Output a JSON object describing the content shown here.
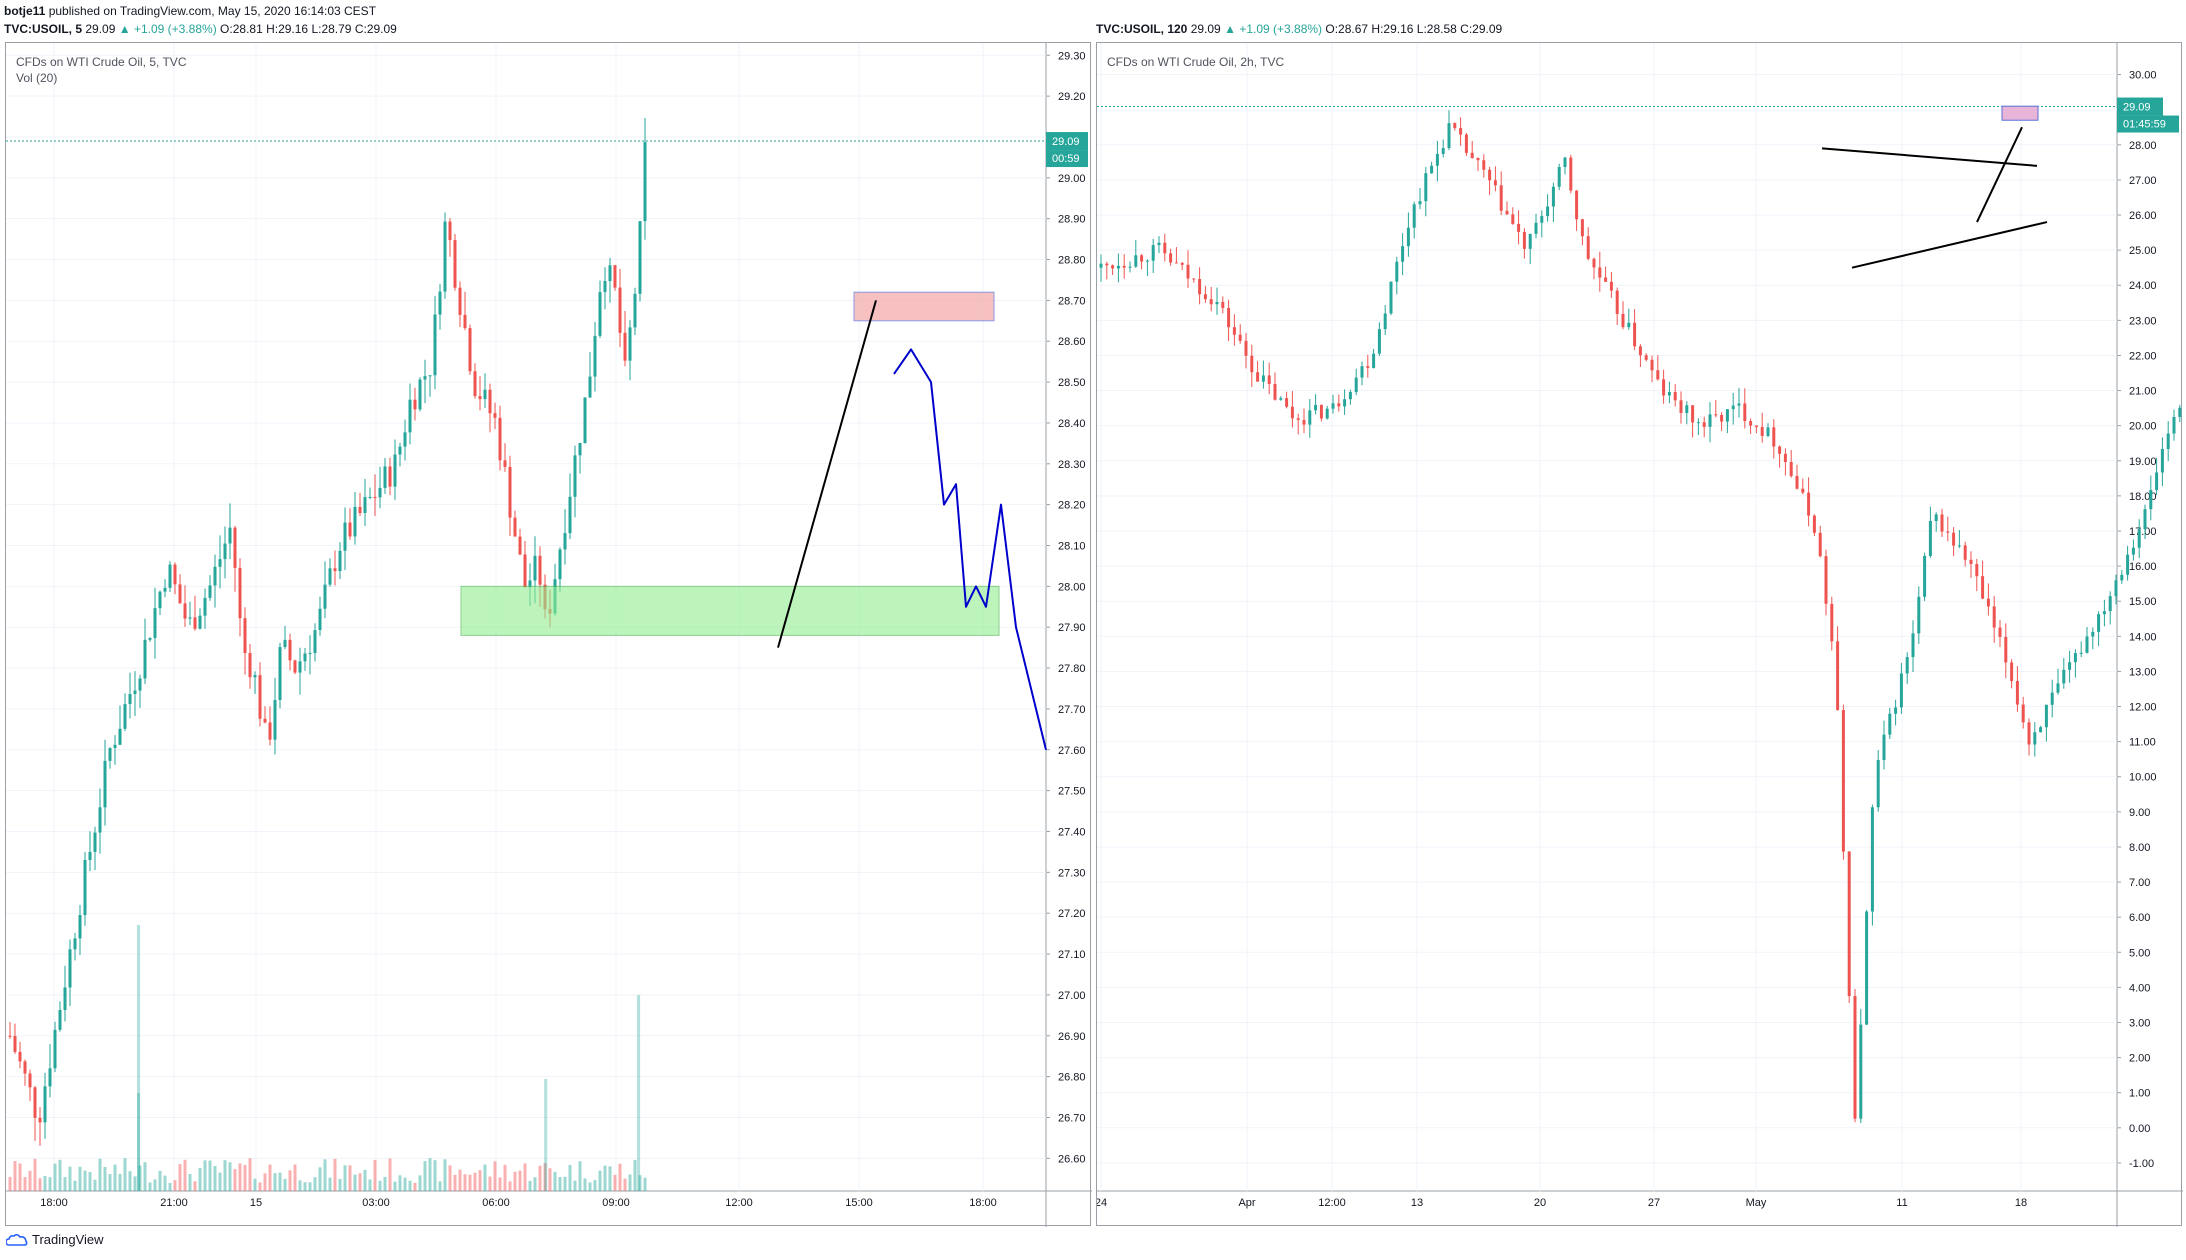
{
  "header": {
    "author": "botje11",
    "published": "published on TradingView.com, May 15, 2020 16:14:03 CEST"
  },
  "left_panel": {
    "symbol_line": {
      "symbol": "TVC:USOIL, 5",
      "last": "29.09",
      "change": "+1.09 (+3.88%)",
      "ohlc": "O:28.81 H:29.16 L:28.79 C:29.09"
    },
    "title": "CFDs on WTI Crude Oil, 5, TVC",
    "indicator": "Vol (20)",
    "price_tag": "29.09",
    "countdown_tag": "00:59"
  },
  "right_panel": {
    "symbol_line": {
      "symbol": "TVC:USOIL, 120",
      "last": "29.09",
      "change": "+1.09 (+3.88%)",
      "ohlc": "O:28.67 H:29.16 L:28.58 C:29.09"
    },
    "title": "CFDs on WTI Crude Oil, 2h, TVC",
    "price_tag": "29.09",
    "countdown_tag": "01:45:59"
  },
  "footer": {
    "brand": "TradingView"
  },
  "colors": {
    "up": "#26a69a",
    "down": "#ef5350",
    "projection": "#0000cc",
    "support_zone": "#90ee90",
    "resistance_zone": "#f4a8a8",
    "price_line": "#26a69a"
  },
  "chart_data": [
    {
      "type": "candlestick",
      "title": "CFDs on WTI Crude Oil, 5, TVC",
      "y_ticks": [
        "29.30",
        "29.20",
        "29.10",
        "29.00",
        "28.90",
        "28.80",
        "28.70",
        "28.60",
        "28.50",
        "28.40",
        "28.30",
        "28.20",
        "28.10",
        "28.00",
        "27.90",
        "27.80",
        "27.70",
        "27.60",
        "27.50",
        "27.40",
        "27.30",
        "27.20",
        "27.10",
        "27.00",
        "26.90",
        "26.80",
        "26.70",
        "26.60"
      ],
      "ylim": [
        26.52,
        29.33
      ],
      "x_ticks": [
        "18:00",
        "21:00",
        "15",
        "03:00",
        "06:00",
        "09:00",
        "12:00",
        "15:00",
        "18:00"
      ],
      "close_path": [
        [
          0,
          26.9
        ],
        [
          8,
          26.7
        ],
        [
          20,
          27.25
        ],
        [
          28,
          27.6
        ],
        [
          36,
          27.8
        ],
        [
          44,
          28.05
        ],
        [
          50,
          27.9
        ],
        [
          56,
          28.0
        ],
        [
          62,
          28.15
        ],
        [
          65,
          27.85
        ],
        [
          68,
          27.8
        ],
        [
          72,
          27.6
        ],
        [
          76,
          27.85
        ],
        [
          80,
          27.8
        ],
        [
          86,
          27.9
        ],
        [
          92,
          28.1
        ],
        [
          100,
          28.2
        ],
        [
          108,
          28.3
        ],
        [
          112,
          28.45
        ],
        [
          118,
          28.55
        ],
        [
          122,
          28.9
        ],
        [
          126,
          28.7
        ],
        [
          130,
          28.5
        ],
        [
          136,
          28.4
        ],
        [
          140,
          28.2
        ],
        [
          144,
          28.0
        ],
        [
          148,
          28.05
        ],
        [
          150,
          27.9
        ],
        [
          154,
          28.1
        ],
        [
          158,
          28.3
        ],
        [
          162,
          28.5
        ],
        [
          166,
          28.8
        ],
        [
          170,
          28.7
        ],
        [
          172,
          28.5
        ],
        [
          176,
          28.8
        ],
        [
          178,
          29.09
        ]
      ],
      "volume_spikes": [
        [
          36,
          0.95
        ],
        [
          36,
          0.35
        ],
        [
          150,
          0.4
        ],
        [
          176,
          0.7
        ]
      ],
      "support_zone": [
        27.88,
        28.0
      ],
      "resistance_zone": [
        28.65,
        28.72
      ],
      "projection": [
        [
          28.52
        ],
        [
          28.58
        ],
        [
          28.5
        ],
        [
          28.2
        ],
        [
          28.25
        ],
        [
          27.95
        ],
        [
          28.0
        ],
        [
          27.95
        ],
        [
          28.2
        ],
        [
          27.9
        ],
        [
          27.6
        ]
      ],
      "last_price": 29.09
    },
    {
      "type": "candlestick",
      "title": "CFDs on WTI Crude Oil, 2h, TVC",
      "y_ticks": [
        "30.00",
        "29.00",
        "28.00",
        "27.00",
        "26.00",
        "25.00",
        "24.00",
        "23.00",
        "22.00",
        "21.00",
        "20.00",
        "19.00",
        "18.00",
        "17.00",
        "16.00",
        "15.00",
        "14.00",
        "13.00",
        "12.00",
        "11.00",
        "10.00",
        "9.00",
        "8.00",
        "7.00",
        "6.00",
        "5.00",
        "4.00",
        "3.00",
        "2.00",
        "1.00",
        "0.00",
        "-1.00"
      ],
      "ylim": [
        -1.8,
        30.9
      ],
      "x_ticks": [
        "24",
        "Apr",
        "12:00",
        "13",
        "20",
        "27",
        "May",
        "11",
        "18"
      ],
      "close_path": [
        [
          0,
          24.5
        ],
        [
          6,
          25.0
        ],
        [
          12,
          23.5
        ],
        [
          16,
          21.5
        ],
        [
          20,
          20.2
        ],
        [
          24,
          20.5
        ],
        [
          28,
          22.0
        ],
        [
          32,
          26.0
        ],
        [
          36,
          28.5
        ],
        [
          40,
          27.0
        ],
        [
          44,
          25.0
        ],
        [
          48,
          27.5
        ],
        [
          50,
          25.0
        ],
        [
          54,
          23.0
        ],
        [
          58,
          21.0
        ],
        [
          62,
          20.0
        ],
        [
          66,
          20.5
        ],
        [
          70,
          19.5
        ],
        [
          74,
          17.0
        ],
        [
          76,
          13.0
        ],
        [
          78,
          0.1
        ],
        [
          80,
          10.0
        ],
        [
          84,
          14.0
        ],
        [
          86,
          17.5
        ],
        [
          90,
          16.0
        ],
        [
          94,
          13.0
        ],
        [
          96,
          11.0
        ],
        [
          100,
          13.0
        ],
        [
          104,
          15.0
        ],
        [
          108,
          17.5
        ],
        [
          110,
          19.5
        ],
        [
          112,
          21.0
        ],
        [
          114,
          20.0
        ],
        [
          118,
          22.0
        ],
        [
          122,
          25.0
        ],
        [
          126,
          27.0
        ],
        [
          130,
          25.2
        ],
        [
          134,
          26.0
        ],
        [
          138,
          25.5
        ],
        [
          142,
          25.8
        ],
        [
          146,
          26.0
        ],
        [
          148,
          25.5
        ],
        [
          152,
          28.0
        ],
        [
          154,
          29.09
        ]
      ],
      "triangle_top": [
        [
          27.9
        ],
        [
          27.4
        ]
      ],
      "triangle_bottom": [
        [
          24.5
        ],
        [
          25.8
        ]
      ],
      "last_price": 29.09
    }
  ]
}
